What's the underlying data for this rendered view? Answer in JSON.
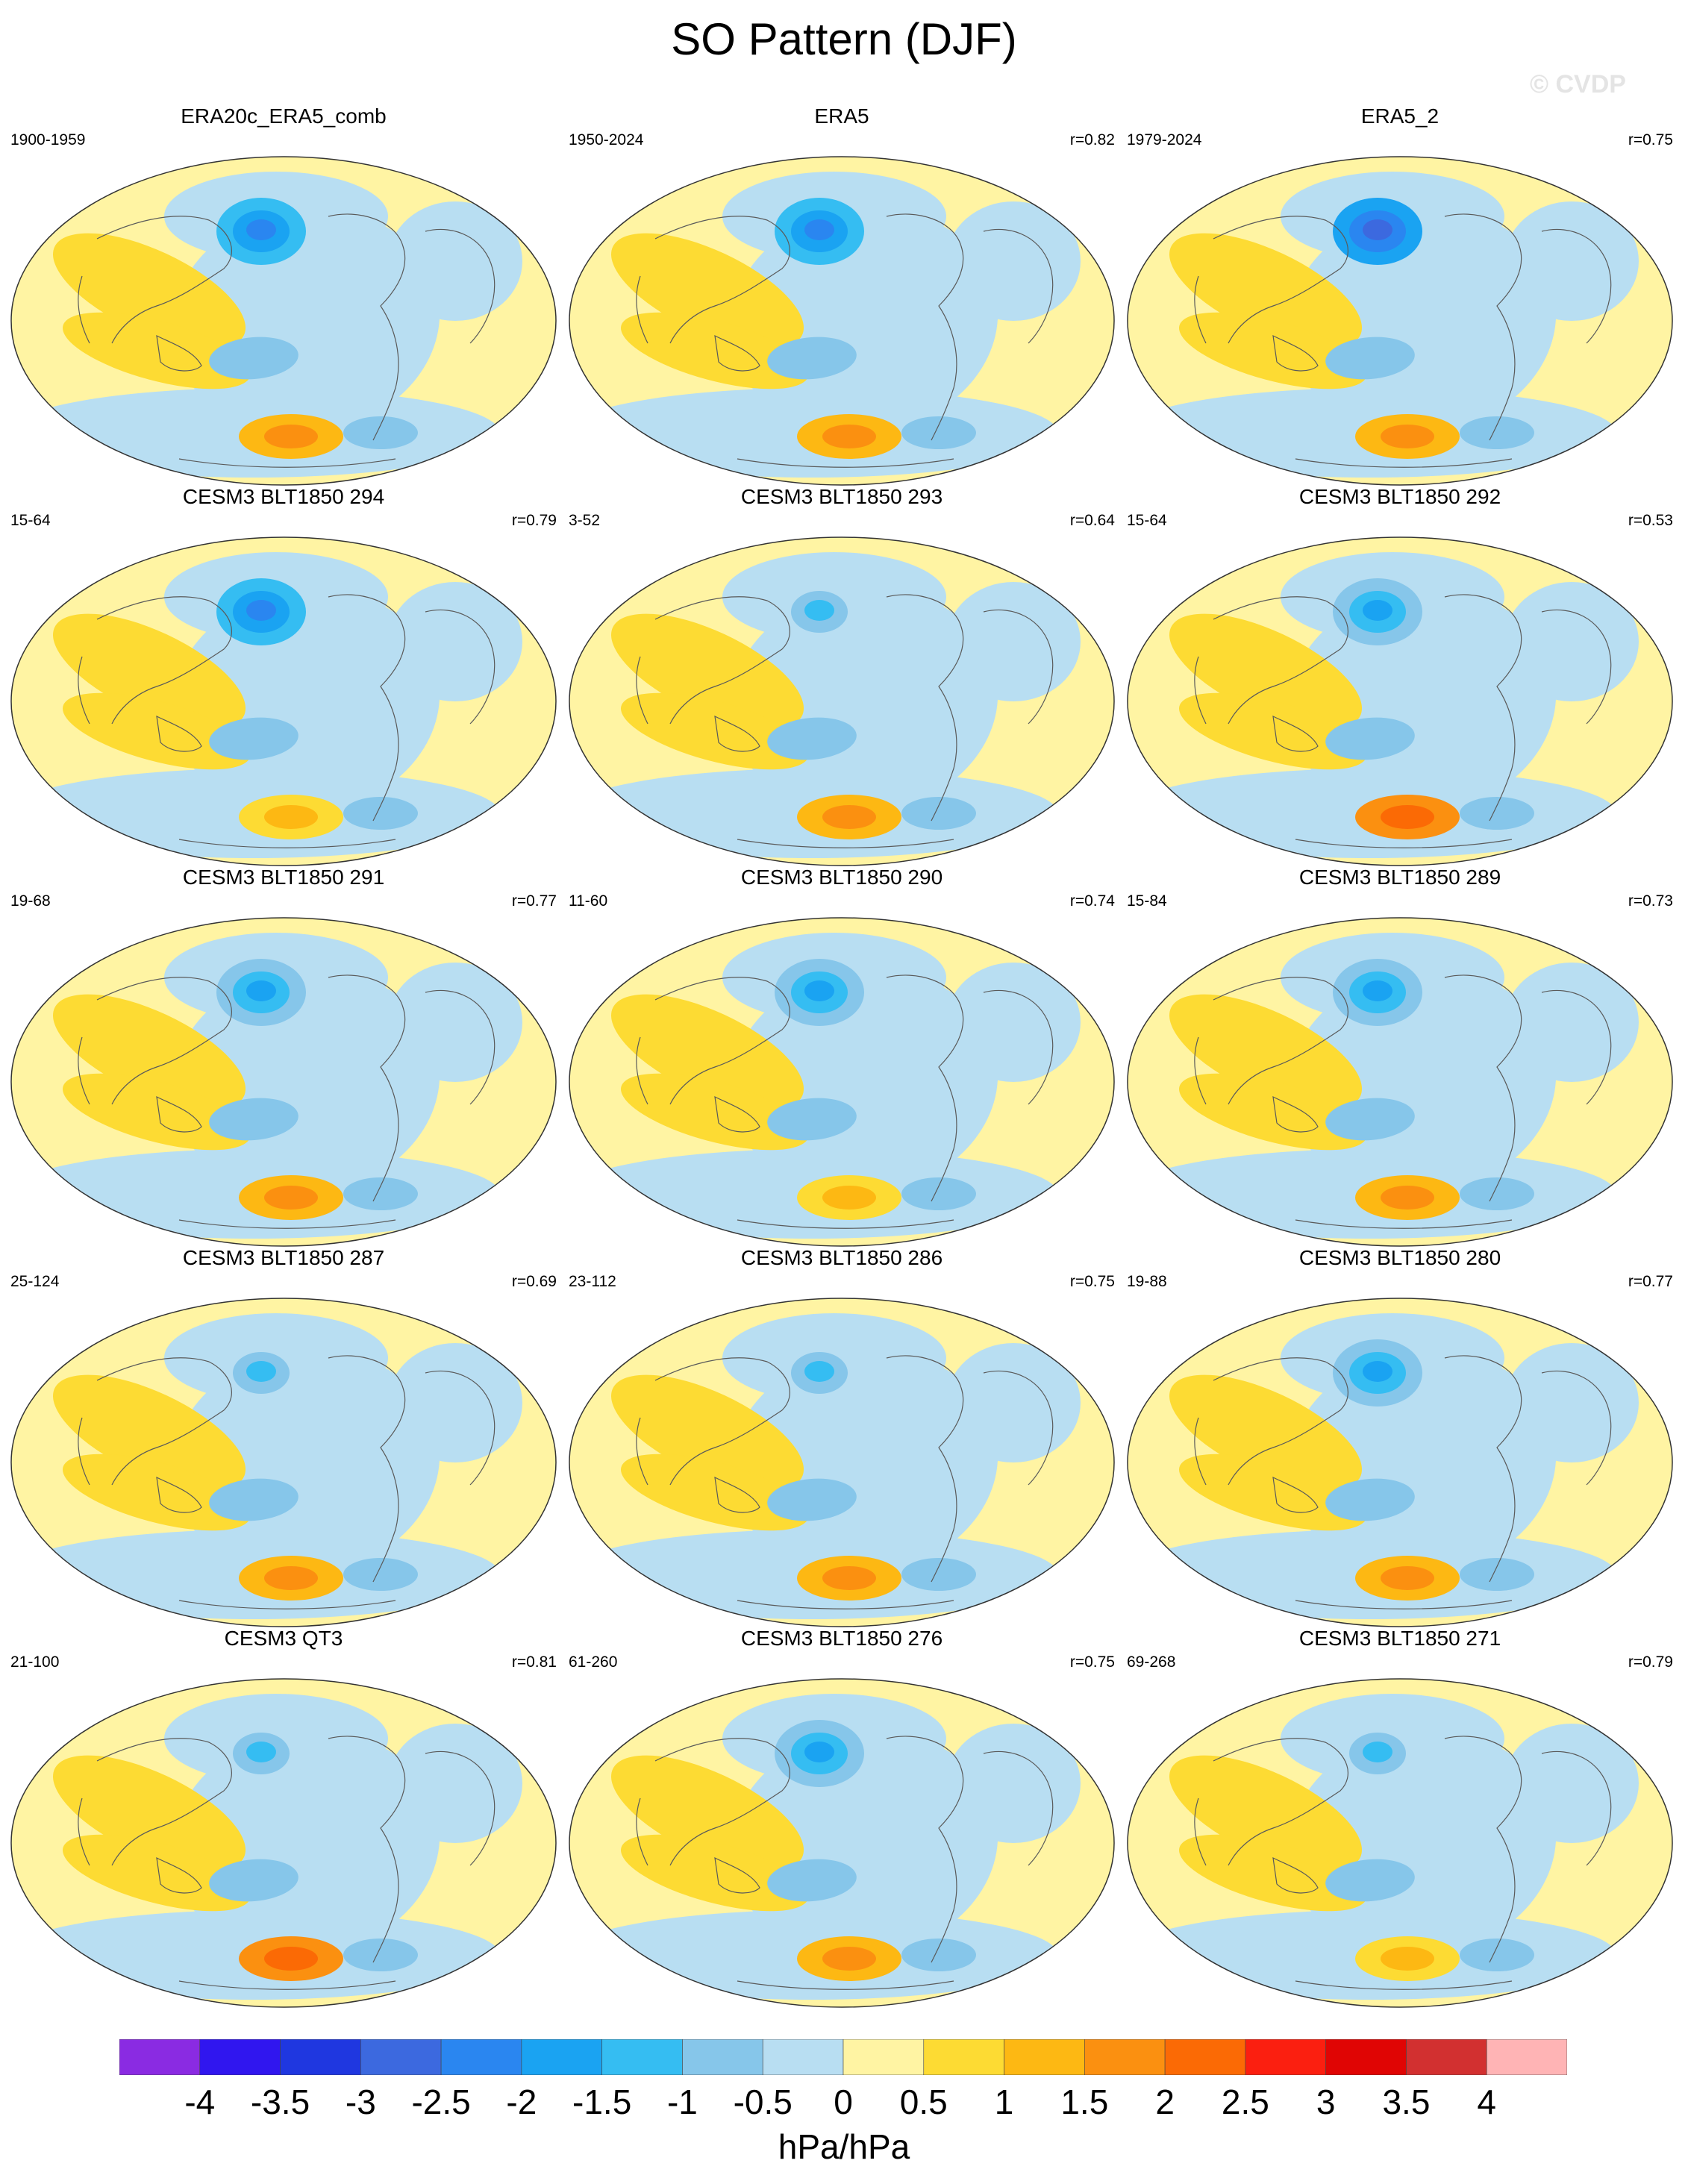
{
  "title": "SO Pattern (DJF)",
  "watermark": "© CVDP",
  "colors": {
    "levels": [
      "#8a2be2",
      "#3016ef",
      "#1f37e0",
      "#3c69df",
      "#2a86f0",
      "#1aa3f2",
      "#35bdf2",
      "#86c6ea",
      "#b8def2",
      "#fff4a3",
      "#fddb33",
      "#fdb813",
      "#fb9010",
      "#fb6a05",
      "#fb1f10",
      "#e00504",
      "#d23030",
      "#ffb4b5"
    ],
    "coast": "#5a5a5a",
    "land_outline": "#777777"
  },
  "colorbar": {
    "ticks": [
      "-4",
      "-3.5",
      "-3",
      "-2.5",
      "-2",
      "-1.5",
      "-1",
      "-0.5",
      "0",
      "0.5",
      "1",
      "1.5",
      "2",
      "2.5",
      "3",
      "3.5",
      "4"
    ],
    "units": "hPa/hPa"
  },
  "panels": [
    {
      "title": "ERA20c_ERA5_comb",
      "period": "1900-1959",
      "corr": "",
      "nlow": -2.5,
      "slow": 1.5
    },
    {
      "title": "ERA5",
      "period": "1950-2024",
      "corr": "r=0.82",
      "nlow": -2.5,
      "slow": 1.5
    },
    {
      "title": "ERA5_2",
      "period": "1979-2024",
      "corr": "r=0.75",
      "nlow": -3.0,
      "slow": 1.5
    },
    {
      "title": "CESM3 BLT1850 294",
      "period": "15-64",
      "corr": "r=0.79",
      "nlow": -2.5,
      "slow": 1.0
    },
    {
      "title": "CESM3 BLT1850 293",
      "period": "3-52",
      "corr": "r=0.64",
      "nlow": -1.5,
      "slow": 1.5
    },
    {
      "title": "CESM3 BLT1850 292",
      "period": "15-64",
      "corr": "r=0.53",
      "nlow": -2.0,
      "slow": 2.0
    },
    {
      "title": "CESM3 BLT1850 291",
      "period": "19-68",
      "corr": "r=0.77",
      "nlow": -2.0,
      "slow": 1.5
    },
    {
      "title": "CESM3 BLT1850 290",
      "period": "11-60",
      "corr": "r=0.74",
      "nlow": -2.0,
      "slow": 1.0
    },
    {
      "title": "CESM3 BLT1850 289",
      "period": "15-84",
      "corr": "r=0.73",
      "nlow": -2.0,
      "slow": 1.5
    },
    {
      "title": "CESM3 BLT1850 287",
      "period": "25-124",
      "corr": "r=0.69",
      "nlow": -1.5,
      "slow": 1.5
    },
    {
      "title": "CESM3 BLT1850 286",
      "period": "23-112",
      "corr": "r=0.75",
      "nlow": -1.5,
      "slow": 1.5
    },
    {
      "title": "CESM3 BLT1850 280",
      "period": "19-88",
      "corr": "r=0.77",
      "nlow": -2.0,
      "slow": 1.5
    },
    {
      "title": "CESM3 QT3",
      "period": "21-100",
      "corr": "r=0.81",
      "nlow": -1.5,
      "slow": 2.0
    },
    {
      "title": "CESM3 BLT1850 276",
      "period": "61-260",
      "corr": "r=0.75",
      "nlow": -2.0,
      "slow": 1.5
    },
    {
      "title": "CESM3 BLT1850 271",
      "period": "69-268",
      "corr": "r=0.79",
      "nlow": -1.5,
      "slow": 1.0
    }
  ]
}
